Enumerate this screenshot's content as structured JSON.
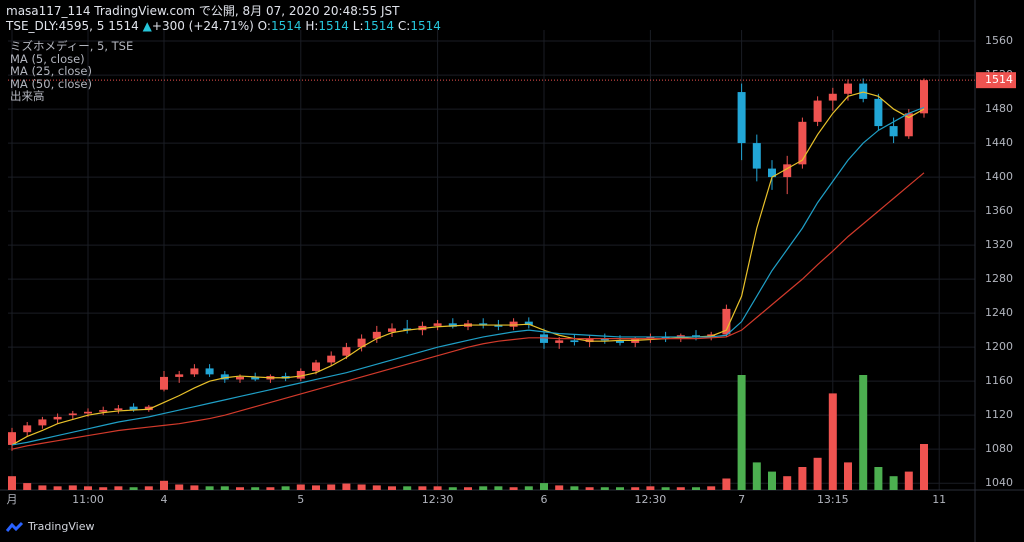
{
  "chart_data": {
    "type": "candlestick",
    "publisher": "masa117_114 TradingView.com で公開, 8月 07, 2020 20:48:55 JST",
    "symbol": "TSE_DLY:4595, 5",
    "price": 1514,
    "arrow": "▲",
    "change": "+300 (+24.71%)",
    "o_label": "O:",
    "o": 1514,
    "h_label": "H:",
    "h": 1514,
    "l_label": "L:",
    "l": 1514,
    "c_label": "C:",
    "c": 1514,
    "legend": [
      "ミズホメディー, 5, TSE",
      "MA (5, close)",
      "MA (25, close)",
      "MA (50, close)",
      "出来高"
    ],
    "brand": "TradingView",
    "last_price": 1514,
    "up_color": "#ef5350",
    "down_color": "#22a6d6",
    "vol_up_color": "#ef5350",
    "vol_down_color": "#4caf50",
    "categories": [
      "月",
      null,
      null,
      null,
      null,
      "11:00",
      null,
      null,
      null,
      null,
      "4",
      null,
      null,
      null,
      null,
      null,
      null,
      null,
      null,
      "5",
      null,
      null,
      null,
      null,
      null,
      null,
      null,
      null,
      "12:30",
      null,
      null,
      null,
      null,
      null,
      null,
      "6",
      null,
      null,
      null,
      null,
      null,
      null,
      "12:30",
      null,
      null,
      null,
      null,
      null,
      "7",
      null,
      null,
      null,
      null,
      null,
      "13:15",
      null,
      null,
      null,
      null,
      null,
      null,
      "11"
    ],
    "open": [
      1085,
      1100,
      1108,
      1115,
      1120,
      1122,
      1124,
      1126,
      1130,
      1126,
      1150,
      1165,
      1168,
      1175,
      1168,
      1162,
      1165,
      1162,
      1166,
      1163,
      1172,
      1182,
      1190,
      1200,
      1210,
      1218,
      1222,
      1220,
      1225,
      1228,
      1224,
      1228,
      1226,
      1224,
      1230,
      1215,
      1205,
      1208,
      1206,
      1210,
      1208,
      1205,
      1210,
      1212,
      1210,
      1214,
      1212,
      1215,
      1500,
      1440,
      1410,
      1400,
      1415,
      1465,
      1490,
      1498,
      1510,
      1492,
      1460,
      1448,
      1475,
      null
    ],
    "high": [
      1105,
      1112,
      1118,
      1122,
      1125,
      1128,
      1130,
      1132,
      1134,
      1132,
      1172,
      1172,
      1180,
      1180,
      1172,
      1168,
      1170,
      1168,
      1170,
      1175,
      1185,
      1195,
      1205,
      1215,
      1225,
      1228,
      1232,
      1230,
      1232,
      1234,
      1232,
      1234,
      1232,
      1234,
      1235,
      1222,
      1212,
      1215,
      1214,
      1216,
      1214,
      1212,
      1216,
      1218,
      1216,
      1220,
      1218,
      1250,
      1510,
      1450,
      1420,
      1425,
      1470,
      1495,
      1505,
      1515,
      1516,
      1498,
      1470,
      1480,
      1516,
      null
    ],
    "low": [
      1078,
      1095,
      1104,
      1110,
      1115,
      1118,
      1120,
      1122,
      1124,
      1124,
      1148,
      1158,
      1165,
      1165,
      1158,
      1158,
      1160,
      1158,
      1160,
      1160,
      1168,
      1178,
      1186,
      1195,
      1205,
      1212,
      1216,
      1214,
      1220,
      1222,
      1220,
      1222,
      1220,
      1220,
      1222,
      1198,
      1198,
      1202,
      1200,
      1204,
      1202,
      1200,
      1205,
      1206,
      1206,
      1208,
      1208,
      1212,
      1420,
      1395,
      1385,
      1380,
      1410,
      1460,
      1478,
      1490,
      1488,
      1455,
      1440,
      1445,
      1470,
      null
    ],
    "close": [
      1100,
      1108,
      1115,
      1118,
      1122,
      1124,
      1126,
      1128,
      1126,
      1130,
      1165,
      1168,
      1175,
      1168,
      1162,
      1165,
      1162,
      1166,
      1163,
      1172,
      1182,
      1190,
      1200,
      1210,
      1218,
      1222,
      1220,
      1225,
      1228,
      1224,
      1228,
      1226,
      1224,
      1230,
      1226,
      1205,
      1208,
      1206,
      1210,
      1208,
      1205,
      1210,
      1212,
      1210,
      1214,
      1212,
      1215,
      1245,
      1440,
      1410,
      1400,
      1415,
      1465,
      1490,
      1498,
      1510,
      1492,
      1460,
      1448,
      1475,
      1514,
      null
    ],
    "volume": [
      30,
      15,
      10,
      8,
      10,
      8,
      6,
      8,
      6,
      8,
      20,
      12,
      10,
      8,
      8,
      6,
      6,
      6,
      8,
      12,
      10,
      12,
      14,
      12,
      10,
      8,
      8,
      8,
      8,
      6,
      6,
      8,
      8,
      6,
      8,
      15,
      10,
      8,
      6,
      6,
      6,
      6,
      8,
      6,
      6,
      6,
      8,
      25,
      250,
      60,
      40,
      30,
      50,
      70,
      210,
      60,
      250,
      50,
      30,
      40,
      100,
      null
    ],
    "vlim": [
      0,
      1000
    ],
    "series": [
      {
        "name": "MA (5, close)",
        "color": "#e8c12a",
        "values": [
          1085,
          1095,
          1102,
          1110,
          1115,
          1120,
          1123,
          1125,
          1126,
          1127,
          1135,
          1143,
          1152,
          1160,
          1164,
          1166,
          1165,
          1164,
          1164,
          1166,
          1170,
          1178,
          1188,
          1200,
          1210,
          1217,
          1220,
          1222,
          1224,
          1225,
          1226,
          1226,
          1226,
          1226,
          1227,
          1220,
          1214,
          1210,
          1207,
          1207,
          1208,
          1208,
          1209,
          1210,
          1211,
          1212,
          1213,
          1220,
          1260,
          1340,
          1400,
          1410,
          1420,
          1450,
          1475,
          1495,
          1500,
          1495,
          1480,
          1470,
          1480,
          null
        ]
      },
      {
        "name": "MA (25, close)",
        "color": "#1f9fc6",
        "values": [
          1085,
          1088,
          1092,
          1096,
          1100,
          1104,
          1108,
          1112,
          1115,
          1118,
          1122,
          1126,
          1130,
          1134,
          1138,
          1142,
          1146,
          1150,
          1154,
          1158,
          1162,
          1166,
          1170,
          1175,
          1180,
          1185,
          1190,
          1195,
          1200,
          1204,
          1208,
          1212,
          1215,
          1218,
          1220,
          1218,
          1216,
          1215,
          1214,
          1213,
          1212,
          1212,
          1212,
          1212,
          1212,
          1212,
          1212,
          1214,
          1230,
          1260,
          1290,
          1315,
          1340,
          1370,
          1395,
          1420,
          1440,
          1455,
          1465,
          1475,
          1482,
          null
        ]
      },
      {
        "name": "MA (50, close)",
        "color": "#d23a2b",
        "values": [
          1080,
          1084,
          1087,
          1090,
          1093,
          1096,
          1099,
          1102,
          1104,
          1106,
          1108,
          1110,
          1113,
          1116,
          1120,
          1125,
          1130,
          1135,
          1140,
          1145,
          1150,
          1155,
          1160,
          1165,
          1170,
          1175,
          1180,
          1185,
          1190,
          1195,
          1200,
          1204,
          1207,
          1209,
          1211,
          1211,
          1210,
          1210,
          1210,
          1210,
          1210,
          1210,
          1210,
          1210,
          1210,
          1210,
          1211,
          1212,
          1220,
          1235,
          1250,
          1265,
          1280,
          1297,
          1313,
          1330,
          1345,
          1360,
          1375,
          1390,
          1405,
          null
        ]
      }
    ],
    "ylim": [
      1032,
      1573
    ],
    "yticks": [
      1040,
      1080,
      1120,
      1160,
      1200,
      1240,
      1280,
      1320,
      1360,
      1400,
      1440,
      1480,
      1520,
      1560
    ],
    "grid": true
  }
}
